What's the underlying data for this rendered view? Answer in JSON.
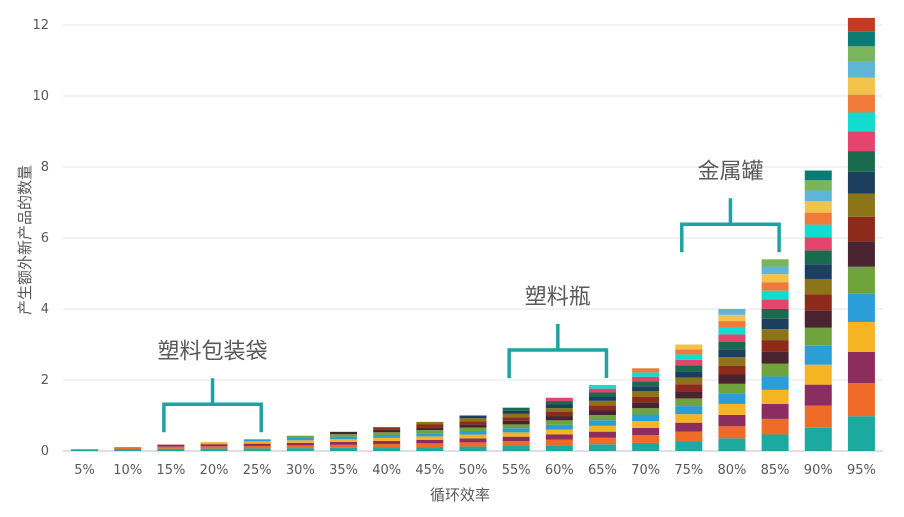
{
  "chart_data": {
    "type": "bar",
    "stacked": true,
    "xlabel": "循环效率",
    "ylabel": "产生额外新产品的数量",
    "ylim": [
      0,
      12
    ],
    "yticks": [
      0,
      2,
      4,
      6,
      8,
      10,
      12
    ],
    "grid": true,
    "categories": [
      "5%",
      "10%",
      "15%",
      "20%",
      "25%",
      "30%",
      "35%",
      "40%",
      "45%",
      "50%",
      "55%",
      "60%",
      "65%",
      "70%",
      "75%",
      "80%",
      "85%",
      "90%",
      "95%"
    ],
    "totals": [
      0.05,
      0.11,
      0.18,
      0.25,
      0.33,
      0.43,
      0.54,
      0.67,
      0.82,
      1.0,
      1.22,
      1.5,
      1.86,
      2.33,
      3.0,
      4.0,
      5.4,
      7.9,
      12.2
    ],
    "layer_increment_factor": 0.95,
    "layer_colors": [
      "#1ba9a0",
      "#f06a28",
      "#8c2d5f",
      "#f5b523",
      "#2b9ed8",
      "#6fa43c",
      "#4a2330",
      "#8e2a1a",
      "#8e7419",
      "#1d3f5e",
      "#1a6b4e",
      "#e3456c",
      "#12dccf",
      "#f07a3a",
      "#f2c34a",
      "#5eb5d7",
      "#7ab55c",
      "#0c7a75",
      "#c23b22"
    ],
    "annotations": [
      {
        "text": "塑料包装袋",
        "bracket_from": "15%",
        "bracket_to": "25%"
      },
      {
        "text": "塑料瓶",
        "bracket_from": "55%",
        "bracket_to": "65%"
      },
      {
        "text": "金属罐",
        "bracket_from": "75%",
        "bracket_to": "85%"
      }
    ]
  }
}
